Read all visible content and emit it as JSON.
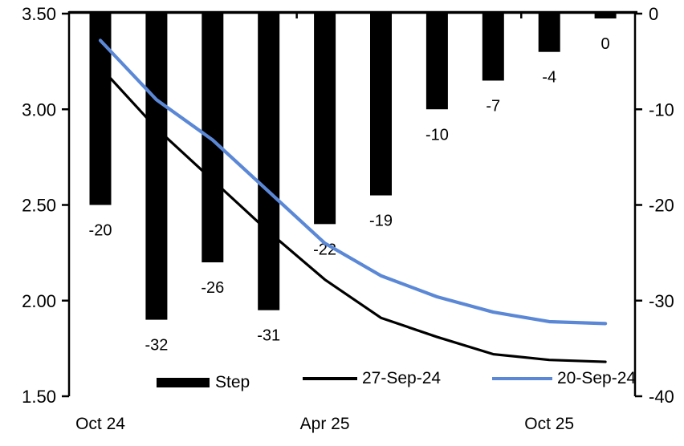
{
  "chart_data": {
    "type": "combo",
    "n_categories": 10,
    "background": "#ffffff",
    "x_tick_labels": [
      {
        "label": "Oct 24",
        "category_index": 0
      },
      {
        "label": "Apr 25",
        "category_index": 4
      },
      {
        "label": "Oct 25",
        "category_index": 8
      }
    ],
    "left_axis": {
      "min": 1.5,
      "max": 3.5,
      "tick_step": 0.5,
      "tick_labels": [
        "3.50",
        "3.00",
        "2.50",
        "2.00",
        "1.50"
      ]
    },
    "right_axis": {
      "min": -40,
      "max": 0,
      "tick_step": 10,
      "tick_labels": [
        "0",
        "-10",
        "-20",
        "-30",
        "-40"
      ]
    },
    "series": [
      {
        "name": "Step",
        "type": "bar",
        "axis": "right",
        "color": "#000000",
        "values": [
          -20,
          -32,
          -26,
          -31,
          -22,
          -19,
          -10,
          -7,
          -4,
          0
        ],
        "data_labels": [
          "-20",
          "-32",
          "-26",
          "-31",
          "-22",
          "-19",
          "-10",
          "-7",
          "-4",
          "0"
        ]
      },
      {
        "name": "27-Sep-24",
        "type": "line",
        "axis": "left",
        "color": "#000000",
        "values": [
          3.22,
          2.9,
          2.63,
          2.36,
          2.11,
          1.91,
          1.81,
          1.72,
          1.69,
          1.68
        ]
      },
      {
        "name": "20-Sep-24",
        "type": "line",
        "axis": "left",
        "color": "#5B88D6",
        "values": [
          3.36,
          3.05,
          2.84,
          2.57,
          2.3,
          2.13,
          2.02,
          1.94,
          1.89,
          1.88
        ]
      }
    ],
    "legend": {
      "position": "bottom-inside",
      "items": [
        "Step",
        "27-Sep-24",
        "20-Sep-24"
      ]
    }
  }
}
